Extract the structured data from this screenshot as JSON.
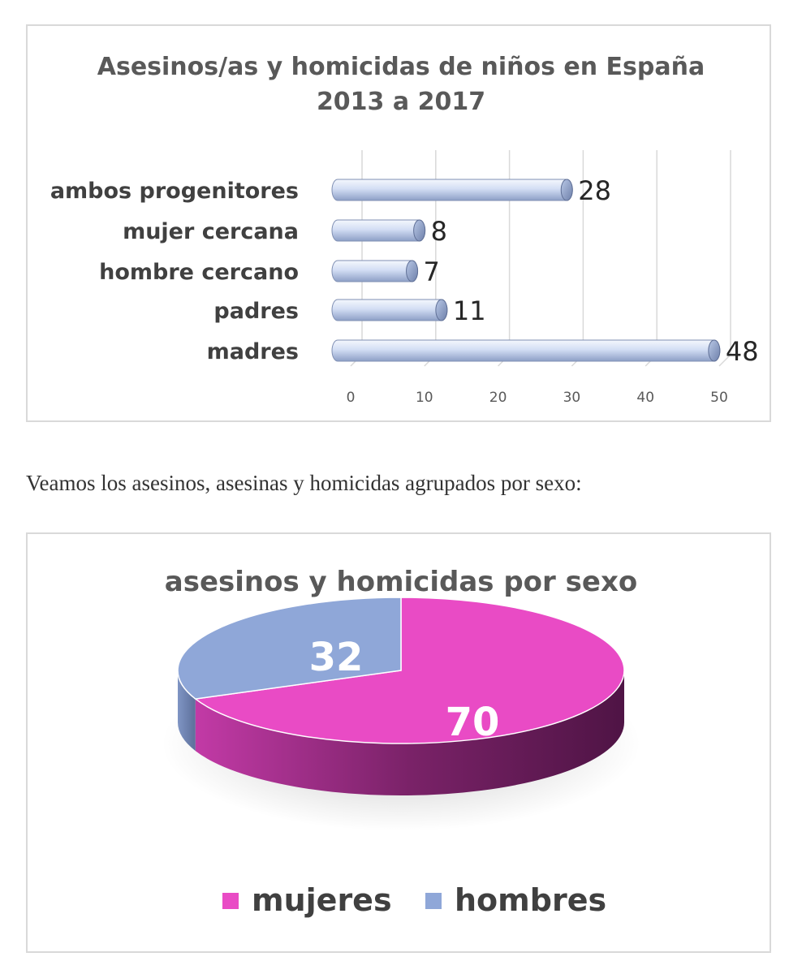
{
  "chart_data": [
    {
      "type": "bar",
      "orientation": "horizontal",
      "title": "Asesinos/as y homicidas de niños en España",
      "subtitle": "2013 a 2017",
      "categories": [
        "madres",
        "padres",
        "hombre cercano",
        "mujer cercana",
        "ambos progenitores"
      ],
      "values": [
        48,
        11,
        7,
        8,
        28
      ],
      "xlim": [
        0,
        50
      ],
      "xticks": [
        "0",
        "10",
        "20",
        "30",
        "40",
        "50"
      ],
      "xlabel": "",
      "ylabel": "",
      "grid": true,
      "legend": "none",
      "bar_color": "#c5d3ee",
      "style": "3d-cylinder"
    },
    {
      "type": "pie",
      "title": "asesinos y homicidas por sexo",
      "labels": [
        "mujeres",
        "hombres"
      ],
      "values": [
        70,
        32
      ],
      "colors": [
        "#e94bc5",
        "#8fa7d8"
      ],
      "legend": "bottom",
      "style": "3d"
    }
  ],
  "between_text": "Veamos los asesinos, asesinas y homicidas agrupados por sexo:"
}
